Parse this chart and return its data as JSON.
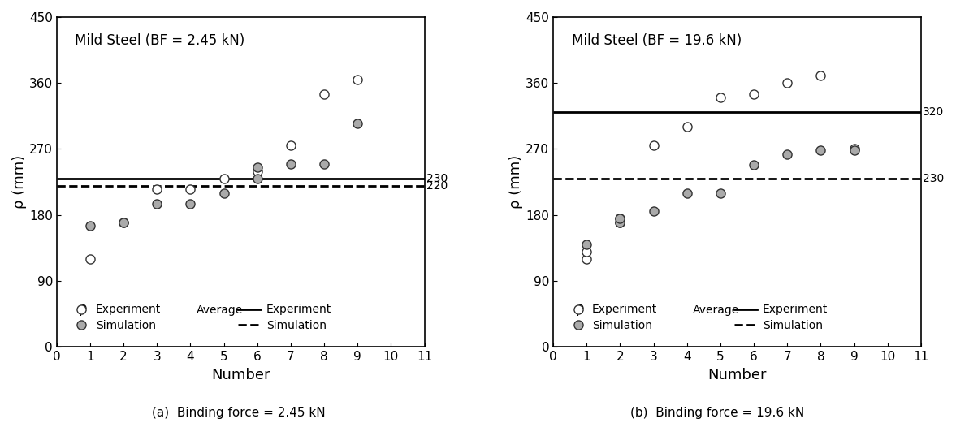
{
  "plot1": {
    "title": "Mild Steel (BF = 2.45 kN)",
    "exp_x": [
      1,
      2,
      3,
      4,
      5,
      6,
      7,
      8,
      9
    ],
    "exp_y": [
      120,
      170,
      215,
      215,
      230,
      240,
      275,
      345,
      365
    ],
    "sim_x": [
      1,
      2,
      3,
      4,
      5,
      6,
      6,
      7,
      8,
      9
    ],
    "sim_y": [
      165,
      170,
      195,
      195,
      210,
      230,
      245,
      250,
      250,
      305
    ],
    "avg_exp": 230,
    "avg_sim": 220,
    "avg_exp_label": "230",
    "avg_sim_label": "220"
  },
  "plot2": {
    "title": "Mild Steel (BF = 19.6 kN)",
    "exp_x": [
      1,
      1,
      2,
      2,
      3,
      4,
      5,
      6,
      7,
      8,
      9
    ],
    "exp_y": [
      120,
      130,
      170,
      175,
      275,
      300,
      340,
      345,
      360,
      370,
      270
    ],
    "sim_x": [
      1,
      2,
      2,
      3,
      4,
      5,
      6,
      7,
      8,
      9
    ],
    "sim_y": [
      140,
      170,
      175,
      185,
      210,
      210,
      248,
      263,
      268,
      268
    ],
    "avg_exp": 320,
    "avg_sim": 230,
    "avg_exp_label": "320",
    "avg_sim_label": "230"
  },
  "xlabel": "Number",
  "ylabel": "ρ (mm)",
  "xlim": [
    0,
    11
  ],
  "ylim": [
    0,
    450
  ],
  "yticks": [
    0,
    90,
    180,
    270,
    360,
    450
  ],
  "xticks": [
    0,
    1,
    2,
    3,
    4,
    5,
    6,
    7,
    8,
    9,
    10,
    11
  ],
  "caption1": "(a)  Binding force = 2.45 kN",
  "caption2": "(b)  Binding force = 19.6 kN",
  "exp_marker_color": "white",
  "sim_marker_color": "#aaaaaa",
  "marker_edge_color": "#333333",
  "avg_exp_color": "black",
  "avg_sim_color": "black",
  "legend_rho_label": "ρ",
  "marker_size": 8,
  "avg_line_lw": 2.0
}
